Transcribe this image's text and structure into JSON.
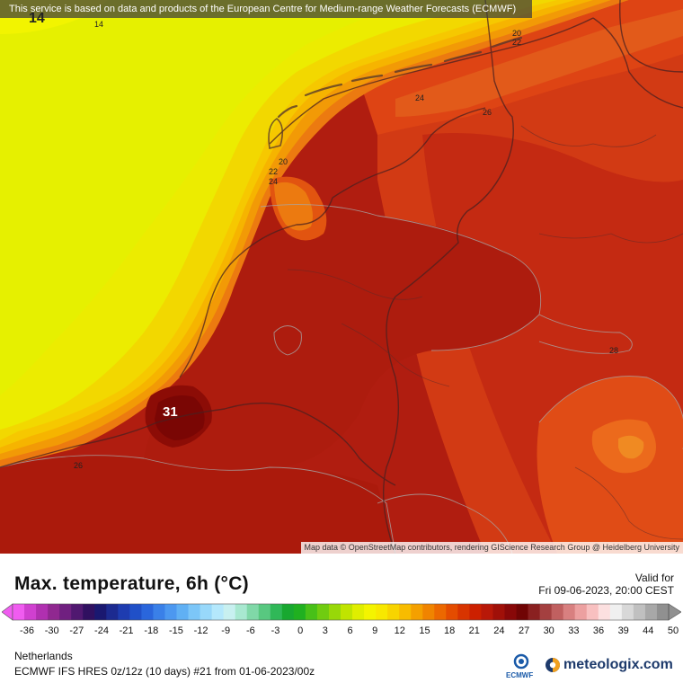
{
  "map": {
    "notice": "This service is based on data and products of the European Centre for Medium-range Weather Forecasts (ECMWF)",
    "attribution": "Map data © OpenStreetMap contributors, rendering GIScience Research Group @ Heidelberg University",
    "contour_labels": [
      {
        "id": "14-topleft",
        "text": "14"
      },
      {
        "id": "14-top",
        "text": "14"
      },
      {
        "id": "20-ne",
        "text": "20"
      },
      {
        "id": "22-ne",
        "text": "22"
      },
      {
        "id": "24-north",
        "text": "24"
      },
      {
        "id": "26-north",
        "text": "26"
      },
      {
        "id": "20-coast",
        "text": "20"
      },
      {
        "id": "22-coast",
        "text": "22"
      },
      {
        "id": "24-coast",
        "text": "24"
      },
      {
        "id": "28-east",
        "text": "28"
      },
      {
        "id": "26-sw",
        "text": "26"
      },
      {
        "id": "31-max",
        "text": "31"
      }
    ]
  },
  "legend": {
    "title": "Max. temperature, 6h (°C)",
    "valid_label": "Valid for",
    "valid_time": "Fri 09-06-2023, 20:00 CEST",
    "ticks": [
      "-36",
      "-30",
      "-27",
      "-24",
      "-21",
      "-18",
      "-15",
      "-12",
      "-9",
      "-6",
      "-3",
      "0",
      "3",
      "6",
      "9",
      "12",
      "15",
      "18",
      "21",
      "24",
      "27",
      "30",
      "33",
      "36",
      "39",
      "44",
      "50"
    ],
    "colors": [
      "#f05cf0",
      "#d040d0",
      "#b030b0",
      "#902890",
      "#702080",
      "#501870",
      "#301060",
      "#1a1870",
      "#1c2a90",
      "#1e3cb0",
      "#2050c8",
      "#2a66dc",
      "#3a80e8",
      "#4c98f0",
      "#60b0f4",
      "#7cc6f8",
      "#98d8fa",
      "#b4e8fc",
      "#c8f0f0",
      "#a8e8d0",
      "#80d8a8",
      "#58c880",
      "#30b858",
      "#18a830",
      "#20b020",
      "#48c018",
      "#70cc10",
      "#98d808",
      "#c0e400",
      "#e0ee00",
      "#f4f400",
      "#f8e800",
      "#f8d400",
      "#f8bc00",
      "#f4a000",
      "#f08400",
      "#ec6800",
      "#e44c00",
      "#d83400",
      "#cc2000",
      "#b81808",
      "#a01008",
      "#880808",
      "#700404",
      "#8a2020",
      "#a44040",
      "#c06060",
      "#d88080",
      "#eca0a0",
      "#f8c0c0",
      "#fce0e0",
      "#f0f0f0",
      "#d8d8d8",
      "#c0c0c0",
      "#a8a8a8",
      "#909090"
    ],
    "region": "Netherlands",
    "model": "ECMWF IFS HRES 0z/12z (10 days) #21 from  01-06-2023/00z",
    "ecmwf_logo_text": "ECMWF",
    "brand": "meteologix.com"
  }
}
